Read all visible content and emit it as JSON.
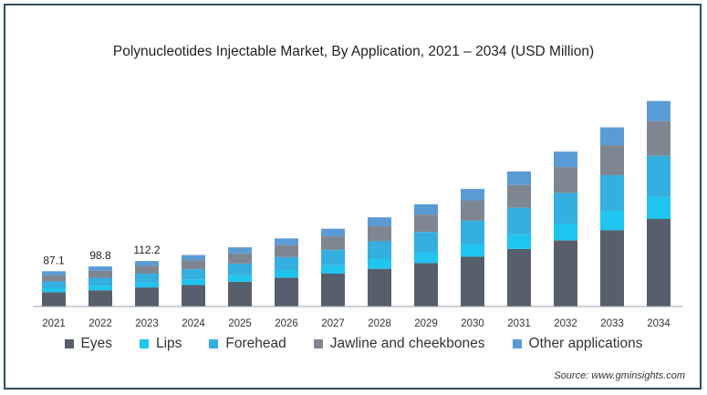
{
  "chart_data": {
    "type": "bar",
    "stacked": true,
    "title": "Polynucleotides Injectable Market, By Application, 2021 – 2034 (USD Million)",
    "categories": [
      "2021",
      "2022",
      "2023",
      "2024",
      "2025",
      "2026",
      "2027",
      "2028",
      "2029",
      "2030",
      "2031",
      "2032",
      "2033",
      "2034"
    ],
    "series": [
      {
        "name": "Eyes",
        "color": "#565f6b",
        "values": [
          35,
          40,
          47,
          53,
          61,
          71,
          81,
          93,
          107,
          123,
          142,
          163,
          188,
          216
        ]
      },
      {
        "name": "Lips",
        "color": "#1fc4ef",
        "values": [
          10,
          11,
          12,
          14,
          16,
          18,
          21,
          24,
          27,
          31,
          36,
          41,
          48,
          55
        ]
      },
      {
        "name": "Forehead",
        "color": "#35aee0",
        "values": [
          17,
          20,
          22,
          25,
          29,
          33,
          38,
          44,
          50,
          58,
          66,
          76,
          88,
          101
        ]
      },
      {
        "name": "Jawline and cheekbones",
        "color": "#7e8791",
        "values": [
          15,
          17,
          19,
          22,
          25,
          29,
          33,
          37,
          43,
          49,
          56,
          64,
          74,
          85
        ]
      },
      {
        "name": "Other applications",
        "color": "#5a9bd6",
        "values": [
          10.1,
          10.8,
          12.2,
          13,
          15,
          17,
          19,
          22,
          25,
          29,
          33,
          38,
          44,
          50
        ]
      }
    ],
    "data_labels": {
      "2021": "87.1",
      "2022": "98.8",
      "2023": "112.2"
    },
    "ylim": [
      0,
      540
    ],
    "grid": false,
    "legend_position": "bottom"
  },
  "source": "Source: www.gminsights.com"
}
